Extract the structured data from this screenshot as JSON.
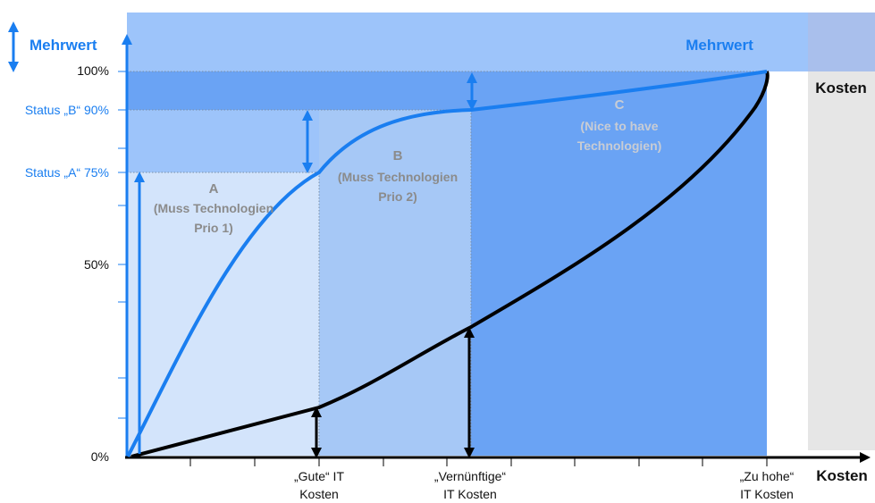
{
  "colors": {
    "mehrwert_band": "#9dc4fa",
    "band_100_90": "#6aa3f4",
    "band_90_75": "#9dc4fa",
    "zone_a": "#d3e4fb",
    "zone_b": "#a6c8f6",
    "zone_c": "#6aa3f4",
    "kosten_band": "#e6e6e6",
    "kosten_header": "#a9bfec",
    "value_curve": "#1a7ef0",
    "cost_curve": "#000000"
  },
  "mehrwert_axis_label": "Mehrwert",
  "mehrwert_band_label": "Mehrwert",
  "kosten_side_label": "Kosten",
  "kosten_axis_label": "Kosten",
  "y_ticks": {
    "p100": "100%",
    "p90": "Status „B“ 90%",
    "p75": "Status „A“ 75%",
    "p50": "50%",
    "p0": "0%"
  },
  "zones": {
    "a": {
      "title": "A",
      "line1": "(Muss Technologien",
      "line2": "Prio 1)"
    },
    "b": {
      "title": "B",
      "line1": "(Muss Technologien",
      "line2": "Prio 2)"
    },
    "c": {
      "title": "C",
      "line1": "(Nice to have",
      "line2": "Technologien)"
    }
  },
  "x_labels": {
    "gute_line1": "„Gute“ IT",
    "gute_line2": "Kosten",
    "vernuenftige_line1": "„Vernünftige“",
    "vernuenftige_line2": "IT Kosten",
    "zuhohe_line1": "„Zu hohe“",
    "zuhohe_line2": "IT Kosten"
  },
  "chart_data": {
    "type": "line",
    "y_ticks_percent": [
      0,
      50,
      75,
      90,
      100
    ],
    "x_marks": [
      "„Gute“ IT Kosten",
      "„Vernünftige“ IT Kosten",
      "„Zu hohe“ IT Kosten"
    ],
    "series": [
      {
        "values_at_marks": [
          75,
          90,
          100
        ]
      },
      {
        "values_at_marks": [
          12,
          34,
          100
        ]
      }
    ]
  }
}
